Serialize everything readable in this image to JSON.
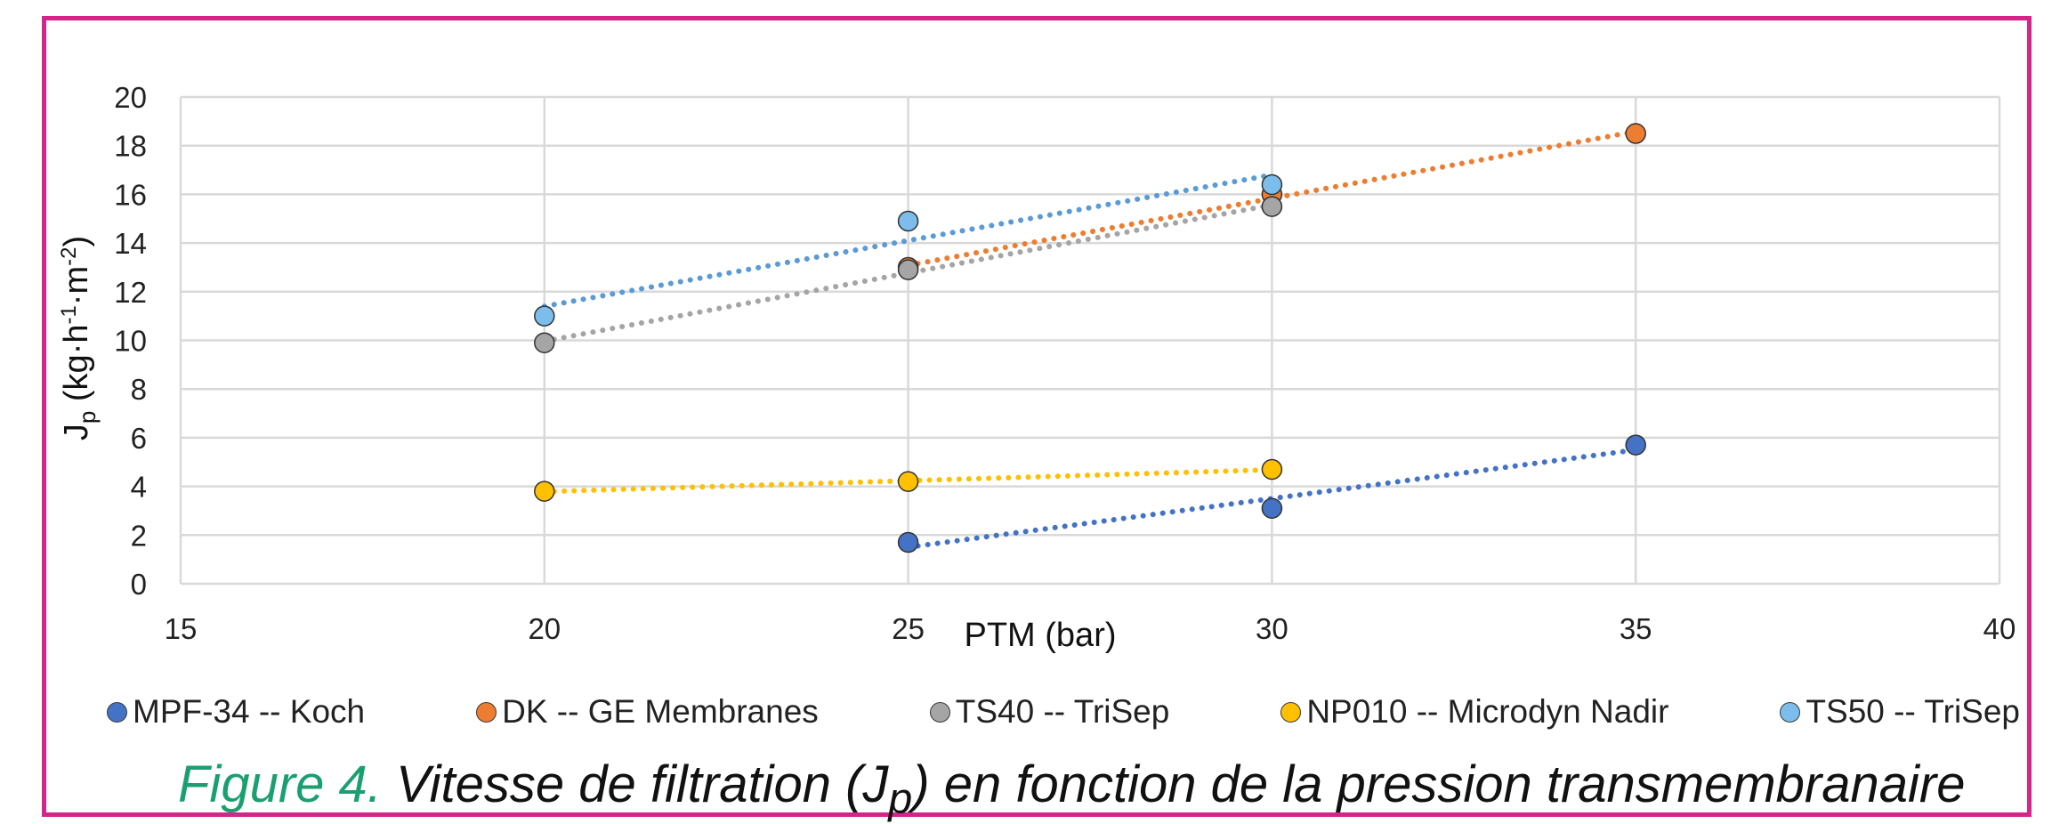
{
  "chart_data": {
    "type": "scatter",
    "xlabel": "PTM (bar)",
    "ylabel_main": "J",
    "ylabel_sub": "p",
    "ylabel_unit": " (kg·h",
    "ylabel_exp1": "-1",
    "ylabel_mid": "·m",
    "ylabel_exp2": "-2",
    "ylabel_end": ")",
    "xlim": [
      15,
      40
    ],
    "ylim": [
      0,
      20
    ],
    "x_ticks": [
      "15",
      "20",
      "25",
      "30",
      "35",
      "40"
    ],
    "y_ticks": [
      "0",
      "2",
      "4",
      "6",
      "8",
      "10",
      "12",
      "14",
      "16",
      "18",
      "20"
    ],
    "grid": true,
    "trendlines": "linear, dotted",
    "legend_position": "bottom",
    "series": [
      {
        "name": "MPF-34 -- Koch",
        "color": "#4472c4",
        "x": [
          25,
          30,
          35
        ],
        "y": [
          1.7,
          3.1,
          5.7
        ]
      },
      {
        "name": "DK -- GE Membranes",
        "color": "#ed7d31",
        "x": [
          25,
          30,
          35
        ],
        "y": [
          13.0,
          16.0,
          18.5
        ]
      },
      {
        "name": "TS40 -- TriSep",
        "color": "#a5a5a5",
        "x": [
          20,
          25,
          30
        ],
        "y": [
          9.9,
          12.9,
          15.5
        ]
      },
      {
        "name": "NP010 -- Microdyn Nadir",
        "color": "#ffc000",
        "x": [
          20,
          25,
          30
        ],
        "y": [
          3.8,
          4.2,
          4.7
        ]
      },
      {
        "name": "TS50 -- TriSep",
        "color": "#7cbdeb",
        "x": [
          20,
          25,
          30
        ],
        "y": [
          11.0,
          14.9,
          16.4
        ]
      }
    ]
  },
  "caption": {
    "figure_label": "Figure 4.",
    "text_pre": " Vitesse de filtration (",
    "jp_main": "J",
    "jp_sub": "p",
    "text_post": ") en fonction de la pression transmembranaire"
  },
  "trend_colors": {
    "MPF-34 -- Koch": "#4472c4",
    "DK -- GE Membranes": "#ed7d31",
    "TS40 -- TriSep": "#a5a5a5",
    "NP010 -- Microdyn Nadir": "#ffc000",
    "TS50 -- TriSep": "#5b9bd5"
  }
}
